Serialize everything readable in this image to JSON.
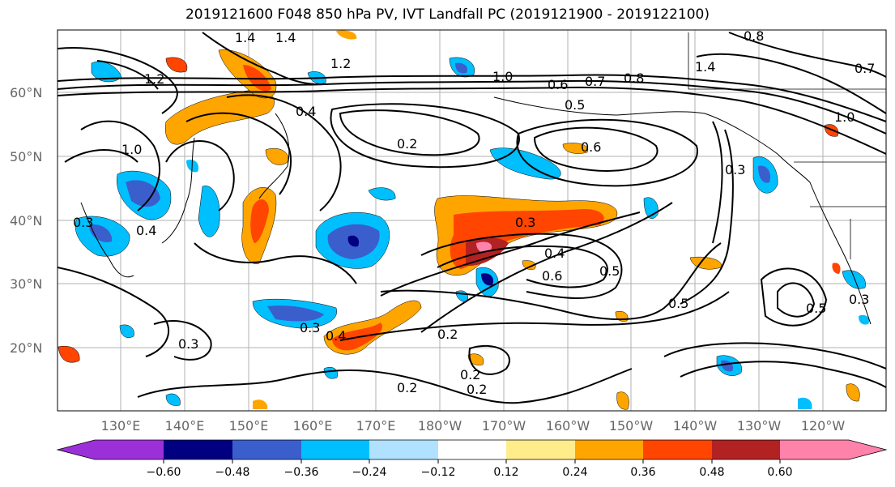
{
  "title": "2019121600 F048 850 hPa PV, IVT Landfall PC (2019121900 - 2019122100)",
  "lon_ticks": [
    "130°E",
    "140°E",
    "150°E",
    "160°E",
    "170°E",
    "180°W",
    "170°W",
    "160°W",
    "150°W",
    "140°W",
    "130°W",
    "120°W"
  ],
  "lat_ticks": [
    "60°N",
    "50°N",
    "40°N",
    "30°N",
    "20°N"
  ],
  "colorbar": {
    "ticks": [
      "−0.60",
      "−0.48",
      "−0.36",
      "−0.24",
      "−0.12",
      "0.12",
      "0.24",
      "0.36",
      "0.48",
      "0.60"
    ],
    "colors": [
      "#9b30d9",
      "#000080",
      "#3a5fcd",
      "#00bfff",
      "#b0e2ff",
      "#ffffff",
      "#ffec8b",
      "#ffa500",
      "#ff4500",
      "#b22222",
      "#ff82ab"
    ]
  },
  "contour_labels": [
    "1.4",
    "1.4",
    "1.2",
    "1.2",
    "1.0",
    "1.0",
    "0.8",
    "0.7",
    "0.6",
    "0.5",
    "0.4",
    "0.4",
    "0.2",
    "0.6",
    "0.3",
    "0.3",
    "0.4",
    "0.6",
    "0.5",
    "0.5",
    "0.5",
    "0.3",
    "0.3",
    "0.2",
    "0.2",
    "0.2",
    "0.2",
    "1.4",
    "0.8",
    "1.0",
    "0.3",
    "0.7",
    "0.3",
    "0.4"
  ],
  "grid": true
}
